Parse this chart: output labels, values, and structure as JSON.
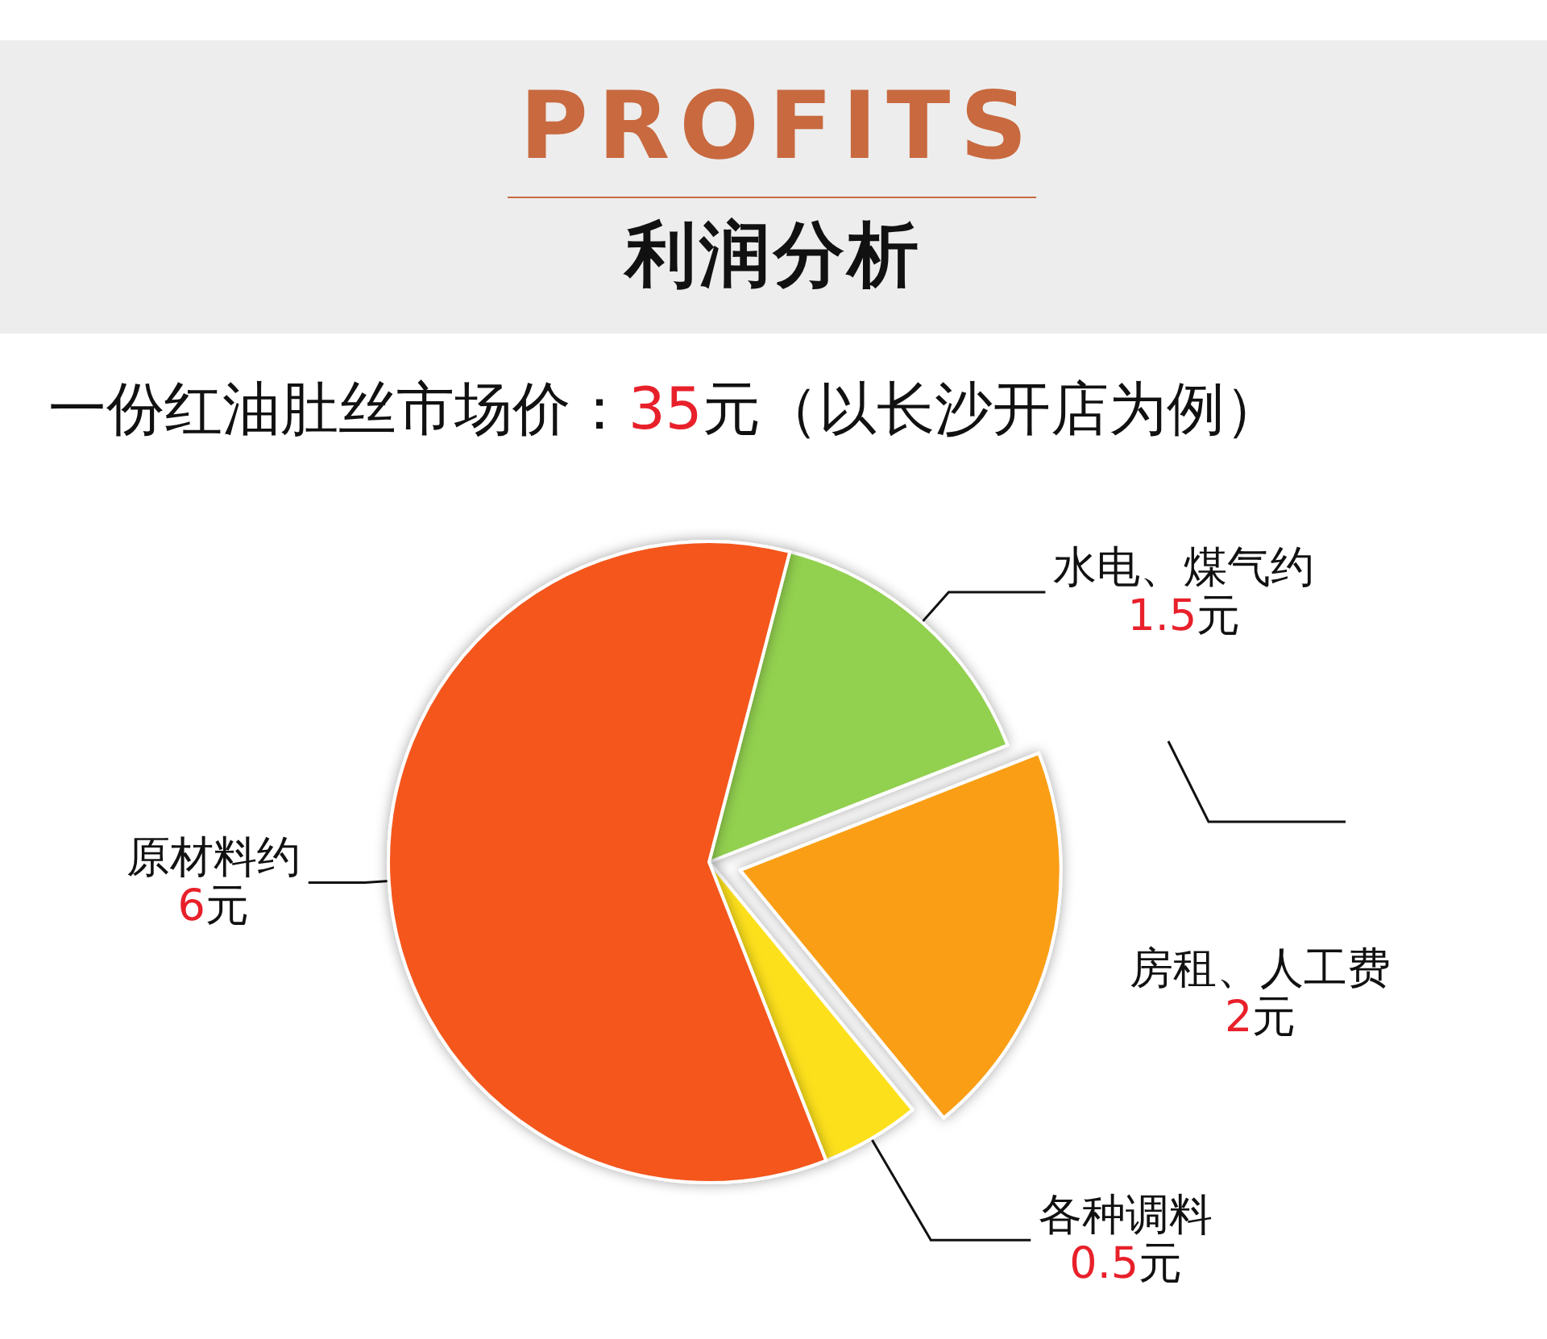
{
  "chart_data": {
    "type": "pie",
    "title": "PROFITS",
    "subtitle": "利润分析",
    "annotations": [
      "一份红油肚丝市场价：35元（以长沙开店为例）"
    ],
    "categories": [
      "水电、煤气约",
      "房租、人工费",
      "各种调料",
      "原材料约"
    ],
    "values": [
      1.5,
      2,
      0.5,
      6
    ],
    "colors": [
      "#92d050",
      "#fa9e14",
      "#fde01f",
      "#f4561c"
    ],
    "value_labels": [
      "1.5元",
      "2元",
      "0.5元",
      "6元"
    ]
  }
}
